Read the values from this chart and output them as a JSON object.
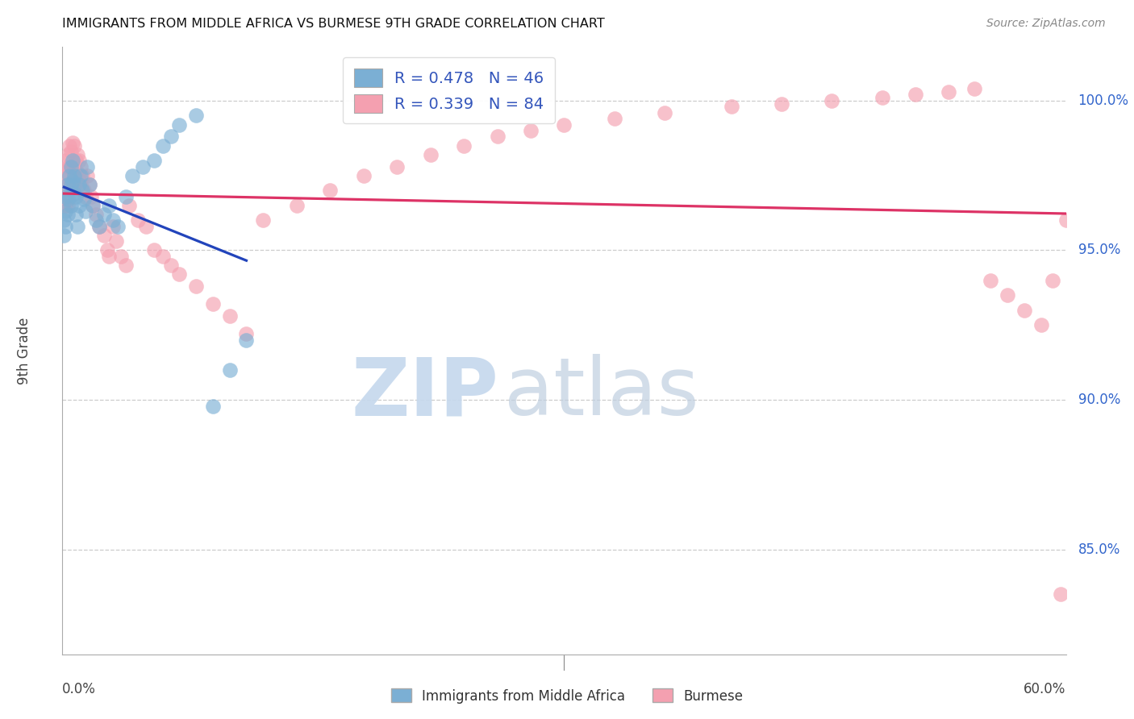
{
  "title": "IMMIGRANTS FROM MIDDLE AFRICA VS BURMESE 9TH GRADE CORRELATION CHART",
  "source": "Source: ZipAtlas.com",
  "ylabel": "9th Grade",
  "ytick_labels": [
    "85.0%",
    "90.0%",
    "95.0%",
    "100.0%"
  ],
  "ytick_values": [
    0.85,
    0.9,
    0.95,
    1.0
  ],
  "xmin": 0.0,
  "xmax": 0.6,
  "ymin": 0.815,
  "ymax": 1.018,
  "blue_color": "#7BAFD4",
  "pink_color": "#F4A0B0",
  "blue_line_color": "#2244BB",
  "pink_line_color": "#DD3366",
  "blue_x": [
    0.001,
    0.001,
    0.002,
    0.002,
    0.002,
    0.003,
    0.003,
    0.003,
    0.004,
    0.004,
    0.005,
    0.005,
    0.005,
    0.006,
    0.006,
    0.007,
    0.007,
    0.008,
    0.008,
    0.009,
    0.01,
    0.01,
    0.011,
    0.012,
    0.013,
    0.014,
    0.015,
    0.016,
    0.018,
    0.02,
    0.022,
    0.025,
    0.028,
    0.03,
    0.033,
    0.038,
    0.042,
    0.048,
    0.055,
    0.06,
    0.065,
    0.07,
    0.08,
    0.09,
    0.1,
    0.11
  ],
  "blue_y": [
    0.96,
    0.955,
    0.968,
    0.963,
    0.958,
    0.972,
    0.967,
    0.962,
    0.975,
    0.968,
    0.978,
    0.972,
    0.965,
    0.98,
    0.973,
    0.975,
    0.969,
    0.968,
    0.962,
    0.958,
    0.972,
    0.965,
    0.975,
    0.97,
    0.967,
    0.963,
    0.978,
    0.972,
    0.965,
    0.96,
    0.958,
    0.962,
    0.965,
    0.96,
    0.958,
    0.968,
    0.975,
    0.978,
    0.98,
    0.985,
    0.988,
    0.992,
    0.995,
    0.898,
    0.91,
    0.92
  ],
  "pink_x": [
    0.001,
    0.001,
    0.001,
    0.002,
    0.002,
    0.002,
    0.002,
    0.003,
    0.003,
    0.003,
    0.003,
    0.004,
    0.004,
    0.004,
    0.005,
    0.005,
    0.005,
    0.006,
    0.006,
    0.007,
    0.007,
    0.007,
    0.008,
    0.008,
    0.009,
    0.009,
    0.01,
    0.01,
    0.011,
    0.011,
    0.012,
    0.013,
    0.014,
    0.015,
    0.016,
    0.017,
    0.018,
    0.02,
    0.022,
    0.025,
    0.027,
    0.028,
    0.03,
    0.032,
    0.035,
    0.038,
    0.04,
    0.045,
    0.05,
    0.055,
    0.06,
    0.065,
    0.07,
    0.08,
    0.09,
    0.1,
    0.11,
    0.12,
    0.14,
    0.16,
    0.18,
    0.2,
    0.22,
    0.24,
    0.26,
    0.28,
    0.3,
    0.33,
    0.36,
    0.4,
    0.43,
    0.46,
    0.49,
    0.51,
    0.53,
    0.545,
    0.555,
    0.565,
    0.575,
    0.585,
    0.592,
    0.597,
    0.6,
    0.605
  ],
  "pink_y": [
    0.975,
    0.97,
    0.965,
    0.98,
    0.975,
    0.97,
    0.965,
    0.982,
    0.978,
    0.972,
    0.965,
    0.985,
    0.978,
    0.972,
    0.983,
    0.978,
    0.972,
    0.986,
    0.978,
    0.985,
    0.978,
    0.972,
    0.98,
    0.975,
    0.982,
    0.976,
    0.98,
    0.975,
    0.978,
    0.972,
    0.975,
    0.97,
    0.968,
    0.975,
    0.972,
    0.968,
    0.965,
    0.962,
    0.958,
    0.955,
    0.95,
    0.948,
    0.958,
    0.953,
    0.948,
    0.945,
    0.965,
    0.96,
    0.958,
    0.95,
    0.948,
    0.945,
    0.942,
    0.938,
    0.932,
    0.928,
    0.922,
    0.96,
    0.965,
    0.97,
    0.975,
    0.978,
    0.982,
    0.985,
    0.988,
    0.99,
    0.992,
    0.994,
    0.996,
    0.998,
    0.999,
    1.0,
    1.001,
    1.002,
    1.003,
    1.004,
    0.94,
    0.935,
    0.93,
    0.925,
    0.94,
    0.835,
    0.96,
    0.97
  ]
}
